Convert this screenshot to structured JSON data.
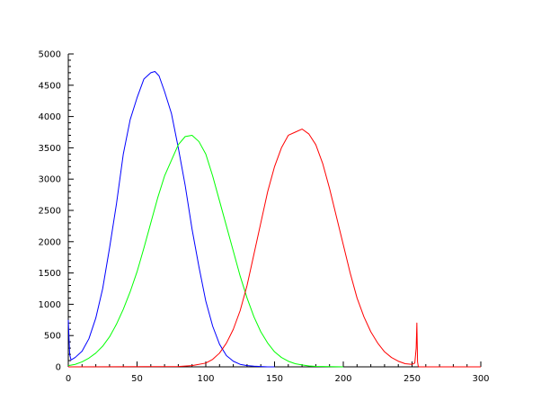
{
  "chart_data": {
    "type": "line",
    "title": "",
    "xlabel": "",
    "ylabel": "",
    "xlim": [
      0,
      300
    ],
    "ylim": [
      0,
      5000
    ],
    "grid": false,
    "x_ticks": [
      "0",
      "50",
      "100",
      "150",
      "200",
      "250",
      "300"
    ],
    "y_ticks": [
      "0",
      "500",
      "1000",
      "1500",
      "2000",
      "2500",
      "3000",
      "3500",
      "4000",
      "4500",
      "5000"
    ],
    "series": [
      {
        "color": "#0000ff",
        "x": [
          0,
          1,
          2,
          5,
          10,
          15,
          20,
          25,
          30,
          35,
          40,
          45,
          50,
          55,
          60,
          63,
          66,
          70,
          75,
          80,
          85,
          90,
          95,
          100,
          105,
          110,
          115,
          120,
          125,
          130,
          135,
          140,
          145,
          150
        ],
        "y": [
          750,
          200,
          110,
          150,
          250,
          450,
          780,
          1250,
          1900,
          2600,
          3400,
          3950,
          4300,
          4600,
          4700,
          4720,
          4650,
          4400,
          4050,
          3500,
          2900,
          2200,
          1600,
          1050,
          650,
          360,
          180,
          90,
          40,
          20,
          10,
          5,
          0,
          0
        ]
      },
      {
        "color": "#00ff00",
        "x": [
          0,
          5,
          10,
          15,
          20,
          25,
          30,
          35,
          40,
          45,
          50,
          55,
          60,
          65,
          70,
          75,
          80,
          85,
          90,
          95,
          100,
          105,
          110,
          115,
          120,
          125,
          130,
          135,
          140,
          145,
          150,
          155,
          160,
          165,
          170,
          175,
          180,
          190,
          200
        ],
        "y": [
          20,
          40,
          80,
          140,
          220,
          330,
          480,
          680,
          920,
          1200,
          1520,
          1900,
          2300,
          2700,
          3050,
          3300,
          3550,
          3680,
          3700,
          3600,
          3400,
          3050,
          2650,
          2250,
          1850,
          1450,
          1100,
          800,
          560,
          380,
          240,
          150,
          90,
          50,
          30,
          15,
          8,
          3,
          0
        ]
      },
      {
        "color": "#ff0000",
        "x": [
          0,
          80,
          90,
          100,
          105,
          110,
          115,
          120,
          125,
          130,
          135,
          140,
          145,
          150,
          155,
          160,
          165,
          170,
          175,
          180,
          185,
          190,
          195,
          200,
          205,
          210,
          215,
          220,
          225,
          230,
          235,
          240,
          245,
          250,
          252,
          253,
          253.5,
          254,
          254.5,
          255,
          260,
          300
        ],
        "y": [
          0,
          5,
          20,
          60,
          120,
          220,
          380,
          600,
          900,
          1300,
          1800,
          2300,
          2800,
          3200,
          3500,
          3700,
          3750,
          3800,
          3720,
          3550,
          3250,
          2850,
          2400,
          1950,
          1500,
          1100,
          800,
          560,
          380,
          240,
          150,
          90,
          50,
          40,
          60,
          300,
          700,
          80,
          10,
          0,
          0,
          0
        ]
      }
    ]
  }
}
